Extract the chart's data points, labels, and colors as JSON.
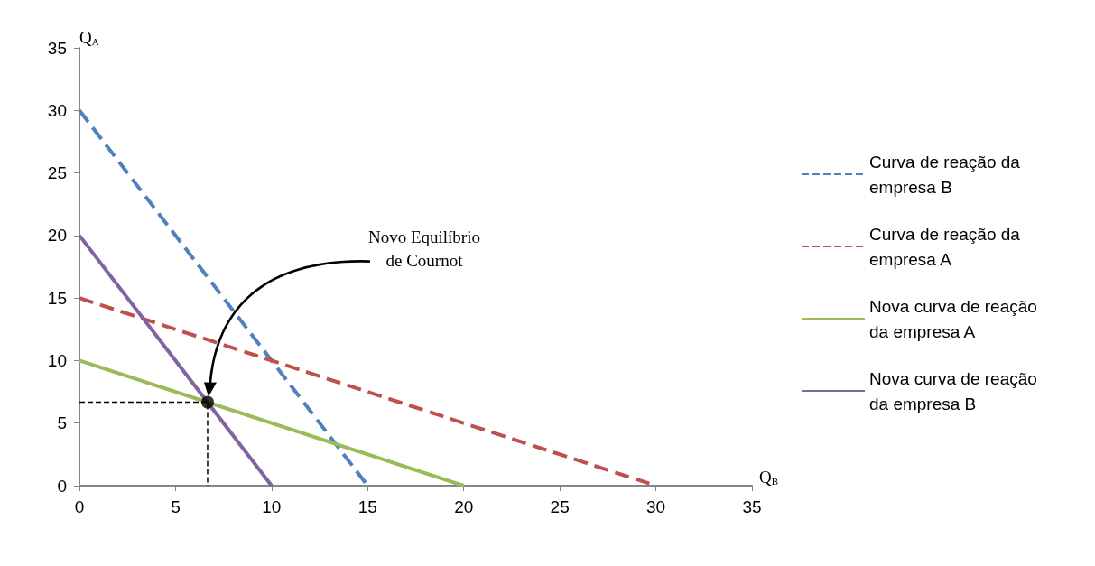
{
  "chart_data": {
    "type": "line",
    "xlabel": "Q$_{B}$",
    "ylabel": "Q$_{A}$",
    "xlim": [
      0,
      35
    ],
    "ylim": [
      0,
      35
    ],
    "xticks": [
      0,
      5,
      10,
      15,
      20,
      25,
      30,
      35
    ],
    "yticks": [
      0,
      5,
      10,
      15,
      20,
      25,
      30,
      35
    ],
    "grid": false,
    "legend": "right",
    "marker": "none",
    "series": [
      {
        "name": "Curva de reação da empresa B",
        "color": "#4f81bd",
        "line_style": "dashed",
        "x": [
          0,
          15
        ],
        "values": [
          30,
          0
        ]
      },
      {
        "name": "Curva de reação da empresa A",
        "color": "#c0504d",
        "line_style": "dashed",
        "x": [
          0,
          30
        ],
        "values": [
          15,
          0
        ]
      },
      {
        "name": "Nova curva de reação da empresa A",
        "color": "#9bbb59",
        "line_style": "solid",
        "x": [
          0,
          20
        ],
        "values": [
          10,
          0
        ]
      },
      {
        "name": "Nova curva de reação da empresa B",
        "color": "#8064a2",
        "line_style": "solid",
        "x": [
          0,
          10
        ],
        "values": [
          20,
          0
        ]
      },
      {
        "color": "#000000",
        "line_style": "dashed",
        "x": [
          0,
          6.67,
          6.67
        ],
        "values": [
          6.67,
          6.67,
          0
        ]
      },
      {
        "type": "scatter",
        "color": "#000000",
        "marker": "circle",
        "x": [
          6.67
        ],
        "values": [
          6.67
        ]
      }
    ],
    "annotations": [
      "Novo Equilíbrio\nde Cournot"
    ]
  }
}
